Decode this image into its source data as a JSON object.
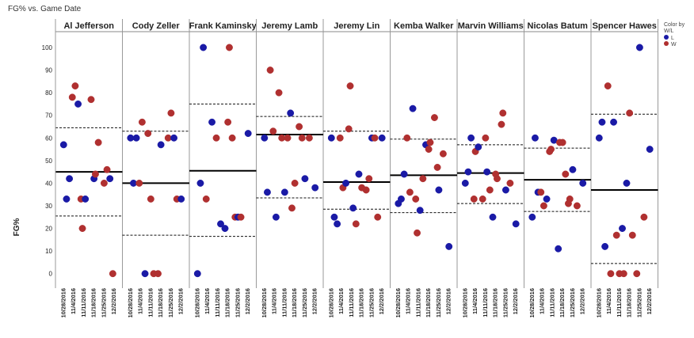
{
  "title": "FG% vs. Game Date",
  "chart_data": {
    "type": "scatter",
    "title": "FG% vs. Game Date",
    "ylabel": "FG%",
    "xlabel": "",
    "ylim": [
      -5,
      107
    ],
    "yticks": [
      0,
      10,
      20,
      30,
      40,
      50,
      60,
      70,
      80,
      90,
      100
    ],
    "x_tick_labels": [
      "10/28/2016",
      "11/4/2016",
      "11/11/2016",
      "11/18/2016",
      "11/25/2016",
      "12/2/2016"
    ],
    "legend": {
      "title": "Color by W/L",
      "position": "top-right",
      "entries": [
        {
          "key": "L",
          "color": "#1a1aa6"
        },
        {
          "key": "W",
          "color": "#b03030"
        }
      ]
    },
    "colors": {
      "L": "#1a1aa6",
      "W": "#b03030"
    },
    "panels": [
      {
        "player": "Al Jefferson",
        "avg": 45,
        "band": [
          25.5,
          64.5
        ],
        "points": [
          [
            "10/28/2016",
            57,
            "L"
          ],
          [
            "10/30/2016",
            33,
            "L"
          ],
          [
            "11/1/2016",
            42,
            "L"
          ],
          [
            "11/3/2016",
            78,
            "W"
          ],
          [
            "11/5/2016",
            83,
            "W"
          ],
          [
            "11/7/2016",
            75,
            "L"
          ],
          [
            "11/9/2016",
            33,
            "W"
          ],
          [
            "11/10/2016",
            20,
            "W"
          ],
          [
            "11/12/2016",
            33,
            "L"
          ],
          [
            "11/16/2016",
            77,
            "W"
          ],
          [
            "11/18/2016",
            42,
            "L"
          ],
          [
            "11/19/2016",
            44,
            "W"
          ],
          [
            "11/21/2016",
            58,
            "W"
          ],
          [
            "11/25/2016",
            40,
            "W"
          ],
          [
            "11/27/2016",
            46,
            "W"
          ],
          [
            "11/29/2016",
            42,
            "L"
          ],
          [
            "12/1/2016",
            0,
            "W"
          ]
        ]
      },
      {
        "player": "Cody Zeller",
        "avg": 40,
        "band": [
          17,
          63
        ],
        "points": [
          [
            "10/28/2016",
            60,
            "L"
          ],
          [
            "10/30/2016",
            40,
            "L"
          ],
          [
            "11/1/2016",
            60,
            "L"
          ],
          [
            "11/3/2016",
            40,
            "W"
          ],
          [
            "11/5/2016",
            67,
            "W"
          ],
          [
            "11/7/2016",
            0,
            "L"
          ],
          [
            "11/9/2016",
            62,
            "W"
          ],
          [
            "11/11/2016",
            33,
            "W"
          ],
          [
            "11/13/2016",
            0,
            "W"
          ],
          [
            "11/16/2016",
            0,
            "W"
          ],
          [
            "11/18/2016",
            57,
            "L"
          ],
          [
            "11/23/2016",
            60,
            "W"
          ],
          [
            "11/25/2016",
            71,
            "W"
          ],
          [
            "11/27/2016",
            60,
            "L"
          ],
          [
            "11/29/2016",
            33,
            "W"
          ],
          [
            "12/2/2016",
            33,
            "L"
          ]
        ]
      },
      {
        "player": "Frank Kaminsky",
        "avg": 45.5,
        "band": [
          16.5,
          75
        ],
        "points": [
          [
            "10/28/2016",
            0,
            "L"
          ],
          [
            "10/30/2016",
            40,
            "L"
          ],
          [
            "11/1/2016",
            100,
            "L"
          ],
          [
            "11/3/2016",
            33,
            "W"
          ],
          [
            "11/7/2016",
            67,
            "L"
          ],
          [
            "11/10/2016",
            60,
            "W"
          ],
          [
            "11/13/2016",
            22,
            "L"
          ],
          [
            "11/16/2016",
            20,
            "L"
          ],
          [
            "11/18/2016",
            67,
            "W"
          ],
          [
            "11/19/2016",
            100,
            "W"
          ],
          [
            "11/21/2016",
            60,
            "W"
          ],
          [
            "11/23/2016",
            25,
            "W"
          ],
          [
            "11/25/2016",
            25,
            "L"
          ],
          [
            "11/27/2016",
            25,
            "W"
          ],
          [
            "12/2/2016",
            62,
            "L"
          ]
        ]
      },
      {
        "player": "Jeremy Lamb",
        "avg": 61.5,
        "band": [
          33.5,
          69.5
        ],
        "points": [
          [
            "10/28/2016",
            60,
            "L"
          ],
          [
            "10/30/2016",
            36,
            "L"
          ],
          [
            "11/1/2016",
            90,
            "W"
          ],
          [
            "11/3/2016",
            63,
            "W"
          ],
          [
            "11/5/2016",
            25,
            "L"
          ],
          [
            "11/7/2016",
            80,
            "W"
          ],
          [
            "11/9/2016",
            60,
            "W"
          ],
          [
            "11/11/2016",
            36,
            "L"
          ],
          [
            "11/13/2016",
            60,
            "W"
          ],
          [
            "11/15/2016",
            71,
            "L"
          ],
          [
            "11/16/2016",
            29,
            "W"
          ],
          [
            "11/18/2016",
            40,
            "W"
          ],
          [
            "11/21/2016",
            65,
            "W"
          ],
          [
            "11/23/2016",
            60,
            "W"
          ],
          [
            "11/25/2016",
            42,
            "L"
          ],
          [
            "11/28/2016",
            60,
            "W"
          ],
          [
            "12/2/2016",
            38,
            "L"
          ]
        ]
      },
      {
        "player": "Jeremy Lin",
        "avg": 40.5,
        "band": [
          28.5,
          63
        ],
        "points": [
          [
            "10/28/2016",
            60,
            "L"
          ],
          [
            "10/30/2016",
            25,
            "L"
          ],
          [
            "11/1/2016",
            22,
            "L"
          ],
          [
            "11/3/2016",
            60,
            "W"
          ],
          [
            "11/5/2016",
            38,
            "W"
          ],
          [
            "11/7/2016",
            40,
            "L"
          ],
          [
            "11/9/2016",
            64,
            "W"
          ],
          [
            "11/10/2016",
            83,
            "W"
          ],
          [
            "11/12/2016",
            29,
            "L"
          ],
          [
            "11/14/2016",
            22,
            "W"
          ],
          [
            "11/16/2016",
            44,
            "L"
          ],
          [
            "11/18/2016",
            38,
            "W"
          ],
          [
            "11/21/2016",
            37,
            "W"
          ],
          [
            "11/23/2016",
            42,
            "W"
          ],
          [
            "11/25/2016",
            60,
            "L"
          ],
          [
            "11/27/2016",
            60,
            "W"
          ],
          [
            "11/29/2016",
            25,
            "W"
          ],
          [
            "12/2/2016",
            60,
            "L"
          ]
        ]
      },
      {
        "player": "Kemba Walker",
        "avg": 43.5,
        "band": [
          27,
          59.5
        ],
        "points": [
          [
            "10/28/2016",
            31,
            "L"
          ],
          [
            "10/30/2016",
            33,
            "L"
          ],
          [
            "11/1/2016",
            44,
            "L"
          ],
          [
            "11/3/2016",
            60,
            "W"
          ],
          [
            "11/5/2016",
            36,
            "W"
          ],
          [
            "11/7/2016",
            73,
            "L"
          ],
          [
            "11/9/2016",
            33,
            "W"
          ],
          [
            "11/10/2016",
            18,
            "W"
          ],
          [
            "11/12/2016",
            28,
            "L"
          ],
          [
            "11/14/2016",
            42,
            "W"
          ],
          [
            "11/16/2016",
            57,
            "L"
          ],
          [
            "11/18/2016",
            55,
            "W"
          ],
          [
            "11/19/2016",
            58,
            "W"
          ],
          [
            "11/22/2016",
            69,
            "W"
          ],
          [
            "11/24/2016",
            47,
            "W"
          ],
          [
            "11/25/2016",
            37,
            "L"
          ],
          [
            "11/28/2016",
            53,
            "W"
          ],
          [
            "12/2/2016",
            12,
            "L"
          ]
        ]
      },
      {
        "player": "Marvin Williams",
        "avg": 44.5,
        "band": [
          31,
          57
        ],
        "points": [
          [
            "10/28/2016",
            40,
            "L"
          ],
          [
            "10/30/2016",
            45,
            "L"
          ],
          [
            "11/1/2016",
            60,
            "L"
          ],
          [
            "11/3/2016",
            33,
            "W"
          ],
          [
            "11/4/2016",
            54,
            "W"
          ],
          [
            "11/6/2016",
            56,
            "L"
          ],
          [
            "11/9/2016",
            33,
            "W"
          ],
          [
            "11/11/2016",
            60,
            "W"
          ],
          [
            "11/12/2016",
            45,
            "L"
          ],
          [
            "11/14/2016",
            37,
            "W"
          ],
          [
            "11/16/2016",
            25,
            "L"
          ],
          [
            "11/18/2016",
            44,
            "W"
          ],
          [
            "11/19/2016",
            42,
            "W"
          ],
          [
            "11/22/2016",
            66,
            "W"
          ],
          [
            "11/23/2016",
            71,
            "W"
          ],
          [
            "11/25/2016",
            37,
            "L"
          ],
          [
            "11/28/2016",
            40,
            "W"
          ],
          [
            "12/2/2016",
            22,
            "L"
          ]
        ]
      },
      {
        "player": "Nicolas Batum",
        "avg": 41.5,
        "band": [
          27.5,
          55.5
        ],
        "points": [
          [
            "10/28/2016",
            25,
            "L"
          ],
          [
            "10/30/2016",
            60,
            "L"
          ],
          [
            "11/1/2016",
            36,
            "L"
          ],
          [
            "11/3/2016",
            36,
            "W"
          ],
          [
            "11/5/2016",
            30,
            "W"
          ],
          [
            "11/7/2016",
            33,
            "L"
          ],
          [
            "11/9/2016",
            54,
            "W"
          ],
          [
            "11/10/2016",
            55,
            "W"
          ],
          [
            "11/12/2016",
            59,
            "L"
          ],
          [
            "11/15/2016",
            11,
            "L"
          ],
          [
            "11/16/2016",
            58,
            "W"
          ],
          [
            "11/18/2016",
            58,
            "W"
          ],
          [
            "11/20/2016",
            44,
            "W"
          ],
          [
            "11/22/2016",
            31,
            "W"
          ],
          [
            "11/23/2016",
            33,
            "W"
          ],
          [
            "11/25/2016",
            46,
            "L"
          ],
          [
            "11/28/2016",
            30,
            "W"
          ],
          [
            "12/2/2016",
            40,
            "L"
          ]
        ]
      },
      {
        "player": "Spencer Hawes",
        "avg": 37,
        "band": [
          4.5,
          70.5
        ],
        "points": [
          [
            "10/28/2016",
            60,
            "L"
          ],
          [
            "10/30/2016",
            67,
            "L"
          ],
          [
            "11/1/2016",
            12,
            "L"
          ],
          [
            "11/3/2016",
            83,
            "W"
          ],
          [
            "11/5/2016",
            0,
            "W"
          ],
          [
            "11/7/2016",
            67,
            "L"
          ],
          [
            "11/9/2016",
            17,
            "W"
          ],
          [
            "11/11/2016",
            0,
            "W"
          ],
          [
            "11/13/2016",
            20,
            "L"
          ],
          [
            "11/14/2016",
            0,
            "W"
          ],
          [
            "11/16/2016",
            40,
            "L"
          ],
          [
            "11/18/2016",
            71,
            "W"
          ],
          [
            "11/20/2016",
            17,
            "W"
          ],
          [
            "11/23/2016",
            0,
            "W"
          ],
          [
            "11/25/2016",
            100,
            "L"
          ],
          [
            "11/28/2016",
            25,
            "W"
          ],
          [
            "12/2/2016",
            55,
            "L"
          ]
        ]
      }
    ]
  }
}
